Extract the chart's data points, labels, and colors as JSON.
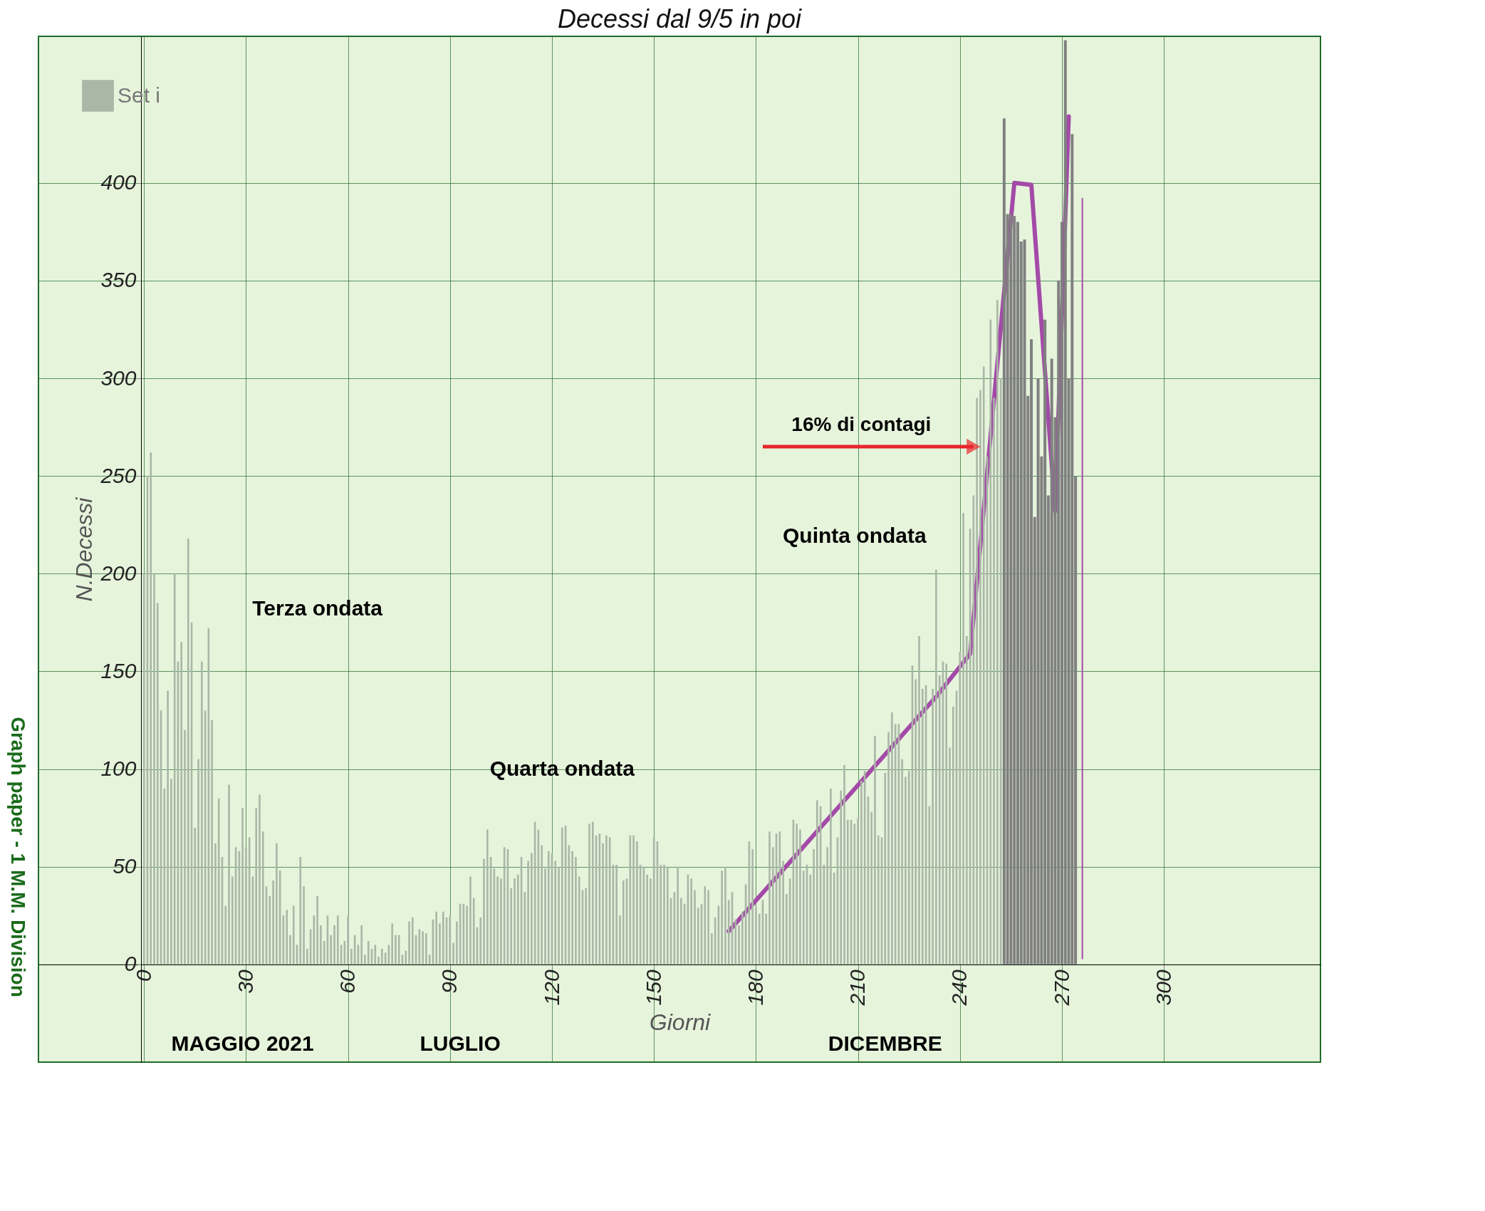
{
  "chart_data": {
    "type": "bar",
    "title": "Decessi dal 9/5 in poi",
    "xlabel": "Giorni",
    "ylabel": "N.Decessi",
    "x": [
      0,
      1,
      2,
      3,
      4,
      5,
      6,
      7,
      8,
      9,
      10,
      11,
      12,
      13,
      14,
      15,
      16,
      17,
      18,
      19,
      20,
      21,
      22,
      23,
      24,
      25,
      26,
      27,
      28,
      29,
      30,
      31,
      32,
      33,
      34,
      35,
      36,
      37,
      38,
      39,
      40,
      41,
      42,
      43,
      44,
      45,
      46,
      47,
      48,
      49,
      50,
      51,
      52,
      53,
      54,
      55,
      56,
      57,
      58,
      59,
      60,
      61,
      62,
      63,
      64,
      65,
      66,
      67,
      68,
      69,
      70,
      71,
      72,
      73,
      74,
      75,
      76,
      77,
      78,
      79,
      80,
      81,
      82,
      83,
      84,
      85,
      86,
      87,
      88,
      89,
      90,
      91,
      92,
      93,
      94,
      95,
      96,
      97,
      98,
      99,
      100,
      101,
      102,
      103,
      104,
      105,
      106,
      107,
      108,
      109,
      110,
      111,
      112,
      113,
      114,
      115,
      116,
      117,
      118,
      119,
      120,
      121,
      122,
      123,
      124,
      125,
      126,
      127,
      128,
      129,
      130,
      131,
      132,
      133,
      134,
      135,
      136,
      137,
      138,
      139,
      140,
      141,
      142,
      143,
      144,
      145,
      146,
      147,
      148,
      149,
      150,
      151,
      152,
      153,
      154,
      155,
      156,
      157,
      158,
      159,
      160,
      161,
      162,
      163,
      164,
      165,
      166,
      167,
      168,
      169,
      170,
      171,
      172,
      173,
      174,
      175,
      176,
      177,
      178,
      179,
      180,
      181,
      182,
      183,
      184,
      185,
      186,
      187,
      188,
      189,
      190,
      191,
      192,
      193,
      194,
      195,
      196,
      197,
      198,
      199,
      200,
      201,
      202,
      203,
      204,
      205,
      206,
      207,
      208,
      209,
      210,
      211,
      212,
      213,
      214,
      215,
      216,
      217,
      218,
      219,
      220,
      221,
      222,
      223,
      224,
      225,
      226,
      227,
      228,
      229,
      230,
      231,
      232,
      233,
      234,
      235,
      236,
      237,
      238,
      239,
      240,
      241,
      242,
      243,
      244,
      245,
      246,
      247,
      248,
      249,
      250,
      251,
      252
    ],
    "series": [
      {
        "name": "Set i",
        "color": "#aab6a6",
        "values": [
          200,
          250,
          262,
          200,
          185,
          130,
          90,
          140,
          95,
          200,
          155,
          165,
          120,
          218,
          175,
          70,
          105,
          155,
          130,
          172,
          125,
          62,
          85,
          55,
          30,
          92,
          45,
          60,
          58,
          80,
          60,
          65,
          45,
          80,
          87,
          68,
          40,
          35,
          43,
          62,
          48,
          25,
          28,
          15,
          30,
          10,
          55,
          40,
          8,
          18,
          25,
          35,
          20,
          12,
          25,
          15,
          20,
          25,
          10,
          12,
          25,
          8,
          15,
          10,
          20,
          5,
          12,
          8,
          10,
          4,
          8,
          6,
          10,
          21,
          15,
          15,
          5,
          7,
          22,
          24,
          15,
          18,
          17,
          16,
          5,
          23,
          27,
          21,
          27,
          24,
          25,
          11,
          22,
          31,
          31,
          30,
          45,
          34,
          19,
          24,
          54,
          69,
          55,
          49,
          45,
          44,
          60,
          59,
          39,
          44,
          46,
          55,
          37,
          53,
          57,
          73,
          69,
          61,
          49,
          58,
          57,
          53,
          50,
          70,
          71,
          61,
          58,
          55,
          45,
          38,
          39,
          72,
          73,
          66,
          67,
          62,
          66,
          65,
          51,
          51,
          25,
          43,
          44,
          66,
          66,
          63,
          51,
          50,
          46,
          44,
          65,
          63,
          51,
          51,
          50,
          34,
          37,
          50,
          34,
          31,
          46,
          44,
          38,
          29,
          31,
          40,
          38,
          16,
          24,
          30,
          48,
          50,
          33,
          37,
          23,
          20,
          27,
          41,
          63,
          59,
          29,
          26,
          33,
          26,
          68,
          60,
          67,
          68,
          53,
          36,
          44,
          74,
          72,
          69,
          48,
          51,
          46,
          59,
          84,
          81,
          51,
          60,
          90,
          47,
          65,
          89,
          102,
          74,
          74,
          72,
          75,
          94,
          99,
          86,
          78,
          117,
          66,
          65,
          98,
          119,
          129,
          123,
          123,
          105,
          96,
          99,
          153,
          146,
          168,
          141,
          143,
          81,
          141,
          202,
          148,
          155,
          154,
          111,
          132,
          140,
          160,
          231,
          168,
          223,
          240,
          290,
          294,
          306,
          260,
          330,
          290,
          340,
          300
        ]
      },
      {
        "color": "#808080",
        "x": [
          253,
          254,
          255,
          256,
          257,
          258,
          259,
          260,
          261,
          262,
          263,
          264,
          265,
          266,
          267,
          268,
          269,
          270,
          271,
          272,
          273,
          274
        ],
        "values": [
          433,
          384,
          384,
          383,
          380,
          370,
          371,
          291,
          320,
          229,
          300,
          260,
          330,
          240,
          310,
          280,
          350,
          380,
          473,
          300,
          425,
          250
        ]
      },
      {
        "type": "line",
        "color": "#a34aa8",
        "x": [
          172,
          233,
          243,
          256,
          261,
          268,
          272
        ],
        "values": [
          17,
          137,
          159,
          400,
          399,
          232,
          434
        ]
      },
      {
        "type": "line",
        "color": "#a34aa8",
        "x": [
          276,
          276
        ],
        "values": [
          392,
          3
        ]
      }
    ],
    "xlim": [
      -30,
      345
    ],
    "ylim": [
      -50,
      475
    ],
    "xticks": [
      0,
      30,
      60,
      90,
      120,
      150,
      180,
      210,
      240,
      270,
      300
    ],
    "yticks": [
      0,
      50,
      100,
      150,
      200,
      250,
      300,
      350,
      400
    ],
    "grid": true,
    "legend": "top left",
    "annotations": [
      "Terza ondata",
      "Quarta ondata",
      "16% di contagi",
      "Quinta ondata",
      "MAGGIO 2021",
      "LUGLIO",
      "DICEMBRE",
      "Graph paper - 1 M.M. Division"
    ]
  }
}
